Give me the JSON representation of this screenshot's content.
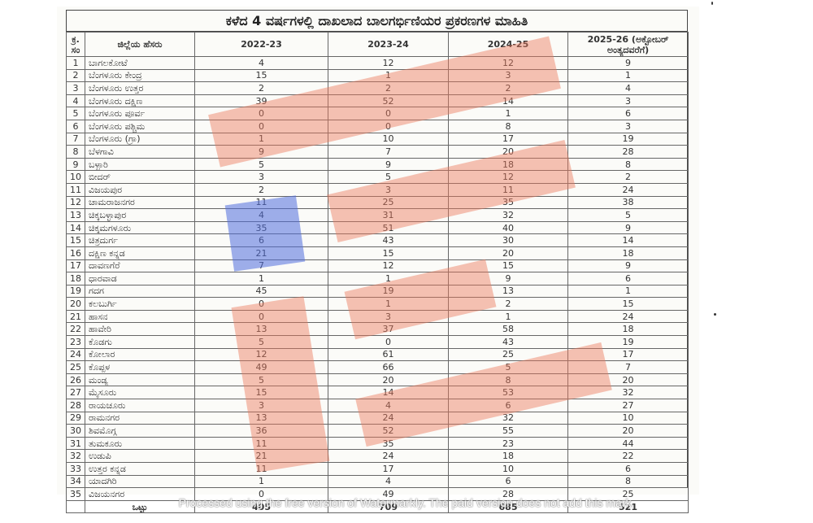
{
  "title": "ಕಳೆದ 4 ವರ್ಷಗಳಲ್ಲಿ ದಾಖಲಾದ ಬಾಲಗರ್ಭಿಣಿಯರ ಪ್ರಕರಣಗಳ ಮಾಹಿತಿ",
  "headers": {
    "sl": "ಕ್ರ. ಸಂ",
    "district": "ಜಿಲ್ಲೆಯ ಹೆಸರು",
    "y1": "2022-23",
    "y2": "2023-24",
    "y3": "2024-25",
    "y4": "2025-26 (ಅಕ್ಟೋಬರ್ ಅಂತ್ಯದವರೆಗೆ)"
  },
  "rows": [
    {
      "sl": "1",
      "name": "ಬಾಗಲಕೋಟೆ",
      "v": [
        "4",
        "12",
        "12",
        "9"
      ]
    },
    {
      "sl": "2",
      "name": "ಬೆಂಗಳೂರು ಕೇಂದ್ರ",
      "v": [
        "15",
        "1",
        "3",
        "1"
      ]
    },
    {
      "sl": "3",
      "name": "ಬೆಂಗಳೂರು ಉತ್ತರ",
      "v": [
        "2",
        "2",
        "2",
        "4"
      ]
    },
    {
      "sl": "4",
      "name": "ಬೆಂಗಳೂರು ದಕ್ಷಿಣ",
      "v": [
        "39",
        "52",
        "14",
        "3"
      ]
    },
    {
      "sl": "5",
      "name": "ಬೆಂಗಳೂರು ಪೂರ್ವ",
      "v": [
        "0",
        "0",
        "1",
        "6"
      ]
    },
    {
      "sl": "6",
      "name": "ಬೆಂಗಳೂರು ಪಶ್ಚಿಮ",
      "v": [
        "0",
        "0",
        "8",
        "3"
      ]
    },
    {
      "sl": "7",
      "name": "ಬೆಂಗಳೂರು (ಗ್ರಾ)",
      "v": [
        "1",
        "10",
        "17",
        "19"
      ]
    },
    {
      "sl": "8",
      "name": "ಬೆಳಗಾವಿ",
      "v": [
        "9",
        "7",
        "20",
        "28"
      ]
    },
    {
      "sl": "9",
      "name": "ಬಳ್ಳಾರಿ",
      "v": [
        "5",
        "9",
        "18",
        "8"
      ]
    },
    {
      "sl": "10",
      "name": "ಬೀದರ್",
      "v": [
        "3",
        "5",
        "12",
        "2"
      ]
    },
    {
      "sl": "11",
      "name": "ವಿಜಯಪುರ",
      "v": [
        "2",
        "3",
        "11",
        "24"
      ]
    },
    {
      "sl": "12",
      "name": "ಚಾಮರಾಜನಗರ",
      "v": [
        "11",
        "25",
        "35",
        "38"
      ]
    },
    {
      "sl": "13",
      "name": "ಚಿಕ್ಕಬಳ್ಳಾಪುರ",
      "v": [
        "4",
        "31",
        "32",
        "5"
      ]
    },
    {
      "sl": "14",
      "name": "ಚಿಕ್ಕಮಗಳೂರು",
      "v": [
        "35",
        "51",
        "40",
        "9"
      ]
    },
    {
      "sl": "15",
      "name": "ಚಿತ್ರದುರ್ಗ",
      "v": [
        "6",
        "43",
        "30",
        "14"
      ]
    },
    {
      "sl": "16",
      "name": "ದಕ್ಷಿಣ ಕನ್ನಡ",
      "v": [
        "21",
        "15",
        "20",
        "18"
      ]
    },
    {
      "sl": "17",
      "name": "ದಾವಣಗೆರೆ",
      "v": [
        "7",
        "12",
        "15",
        "9"
      ]
    },
    {
      "sl": "18",
      "name": "ಧಾರವಾಡ",
      "v": [
        "1",
        "1",
        "9",
        "6"
      ]
    },
    {
      "sl": "19",
      "name": "ಗದಗ",
      "v": [
        "45",
        "19",
        "13",
        "1"
      ]
    },
    {
      "sl": "20",
      "name": "ಕಲಬುರ್ಗಿ",
      "v": [
        "0",
        "1",
        "2",
        "15"
      ]
    },
    {
      "sl": "21",
      "name": "ಹಾಸನ",
      "v": [
        "0",
        "3",
        "1",
        "24"
      ]
    },
    {
      "sl": "22",
      "name": "ಹಾವೇರಿ",
      "v": [
        "13",
        "37",
        "58",
        "18"
      ]
    },
    {
      "sl": "23",
      "name": "ಕೊಡಗು",
      "v": [
        "5",
        "0",
        "43",
        "19"
      ]
    },
    {
      "sl": "24",
      "name": "ಕೋಲಾರ",
      "v": [
        "12",
        "61",
        "25",
        "17"
      ]
    },
    {
      "sl": "25",
      "name": "ಕೊಪ್ಪಳ",
      "v": [
        "49",
        "66",
        "5",
        "7"
      ]
    },
    {
      "sl": "26",
      "name": "ಮಂಡ್ಯ",
      "v": [
        "5",
        "20",
        "8",
        "20"
      ]
    },
    {
      "sl": "27",
      "name": "ಮೈಸೂರು",
      "v": [
        "15",
        "14",
        "53",
        "32"
      ]
    },
    {
      "sl": "28",
      "name": "ರಾಯಚೂರು",
      "v": [
        "3",
        "4",
        "6",
        "27"
      ]
    },
    {
      "sl": "29",
      "name": "ರಾಮನಗರ",
      "v": [
        "13",
        "24",
        "32",
        "10"
      ]
    },
    {
      "sl": "30",
      "name": "ಶಿವಮೊಗ್ಗ",
      "v": [
        "36",
        "52",
        "55",
        "20"
      ]
    },
    {
      "sl": "31",
      "name": "ತುಮಕೂರು",
      "v": [
        "11",
        "35",
        "23",
        "44"
      ]
    },
    {
      "sl": "32",
      "name": "ಉಡುಪಿ",
      "v": [
        "21",
        "24",
        "18",
        "22"
      ]
    },
    {
      "sl": "33",
      "name": "ಉತ್ತರ ಕನ್ನಡ",
      "v": [
        "11",
        "17",
        "10",
        "6"
      ]
    },
    {
      "sl": "34",
      "name": "ಯಾದಗಿರಿ",
      "v": [
        "1",
        "4",
        "6",
        "8"
      ]
    },
    {
      "sl": "35",
      "name": "ವಿಜಯನಗರ",
      "v": [
        "0",
        "49",
        "28",
        "25"
      ]
    }
  ],
  "total": {
    "label": "ಒಟ್ಟು",
    "v": [
      "405",
      "709",
      "685",
      "521"
    ]
  },
  "highlight_colors": {
    "red": "#eb785a",
    "blue": "#506edc"
  },
  "watermark": "Processed using the free version of Watermarkly. The paid version does not add this mark."
}
